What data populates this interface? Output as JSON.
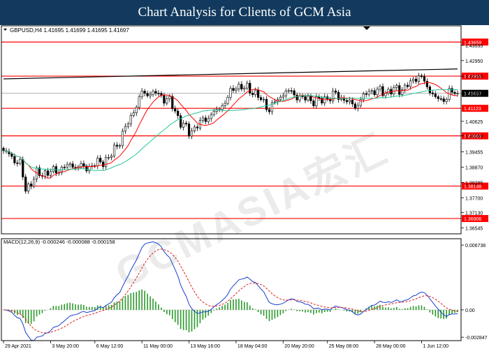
{
  "header": {
    "title": "Chart Analysis for Clients of GCM Asia"
  },
  "watermark": {
    "text": "GCMASIA宏汇"
  },
  "colors": {
    "banner": "#123a5e",
    "level": "#ff0000",
    "fastMA": "#ff0000",
    "slowMA": "#20c997",
    "trend": "#000000",
    "macd": "#1a3fd0",
    "signal": "#e02020",
    "hist": "#2a9a2a"
  },
  "chart_data": {
    "type": "candlestick",
    "symbol_info": "GBPUSD,H4  1.41695 1.41699 1.41695 1.41697",
    "current_price": "1.41697",
    "ylim": [
      1.3632,
      1.442
    ],
    "price_ticks": [
      "1.43535",
      "1.42950",
      "1.42355",
      "1.41697",
      "1.40625",
      "1.40069",
      "1.39455",
      "1.38870",
      "1.38285",
      "1.37700",
      "1.37130",
      "1.36545"
    ],
    "levels": [
      {
        "label": "1.43659",
        "value": 1.43659
      },
      {
        "label": "1.42355",
        "value": 1.42355
      },
      {
        "label": "1.41123",
        "value": 1.41123
      },
      {
        "label": "1.40069",
        "value": 1.40069
      },
      {
        "label": "1.38148",
        "value": 1.38148
      },
      {
        "label": "1.36906",
        "value": 1.36906
      }
    ],
    "trendline": {
      "start": [
        0,
        1.4225
      ],
      "end": [
        164,
        1.4263
      ]
    },
    "x_ticks": [
      {
        "label": "29 Apr 2021",
        "i": 0
      },
      {
        "label": "3 May 20:00",
        "i": 17
      },
      {
        "label": "6 May 12:00",
        "i": 33
      },
      {
        "label": "11 May 00:00",
        "i": 50
      },
      {
        "label": "13 May 16:00",
        "i": 67
      },
      {
        "label": "18 May 04:00",
        "i": 84
      },
      {
        "label": "20 May 20:00",
        "i": 101
      },
      {
        "label": "25 May 08:00",
        "i": 117
      },
      {
        "label": "28 May 00:00",
        "i": 134
      },
      {
        "label": "1 Jun 12:00",
        "i": 151
      }
    ],
    "anchors": [
      [
        0,
        1.395
      ],
      [
        6,
        1.39
      ],
      [
        8,
        1.38
      ],
      [
        12,
        1.386
      ],
      [
        18,
        1.387
      ],
      [
        24,
        1.3895
      ],
      [
        30,
        1.3885
      ],
      [
        38,
        1.392
      ],
      [
        42,
        1.399
      ],
      [
        46,
        1.408
      ],
      [
        50,
        1.417
      ],
      [
        55,
        1.417
      ],
      [
        60,
        1.414
      ],
      [
        64,
        1.406
      ],
      [
        67,
        1.402
      ],
      [
        72,
        1.4065
      ],
      [
        78,
        1.411
      ],
      [
        84,
        1.42
      ],
      [
        90,
        1.418
      ],
      [
        96,
        1.411
      ],
      [
        102,
        1.418
      ],
      [
        108,
        1.415
      ],
      [
        114,
        1.414
      ],
      [
        120,
        1.4165
      ],
      [
        127,
        1.412
      ],
      [
        132,
        1.418
      ],
      [
        138,
        1.4175
      ],
      [
        145,
        1.419
      ],
      [
        150,
        1.424
      ],
      [
        154,
        1.418
      ],
      [
        158,
        1.4135
      ],
      [
        161,
        1.4175
      ],
      [
        164,
        1.41697
      ]
    ],
    "macd": {
      "label": "MACD(12,26,9) -0.000246 -0.000088 -0.000158",
      "ylim": [
        -0.0032,
        0.0074
      ],
      "ticks": [
        {
          "label": "0.006738",
          "value": 0.006738
        },
        {
          "label": "0.00",
          "value": 0.0
        },
        {
          "label": "-0.002847",
          "value": -0.002847
        }
      ]
    }
  }
}
